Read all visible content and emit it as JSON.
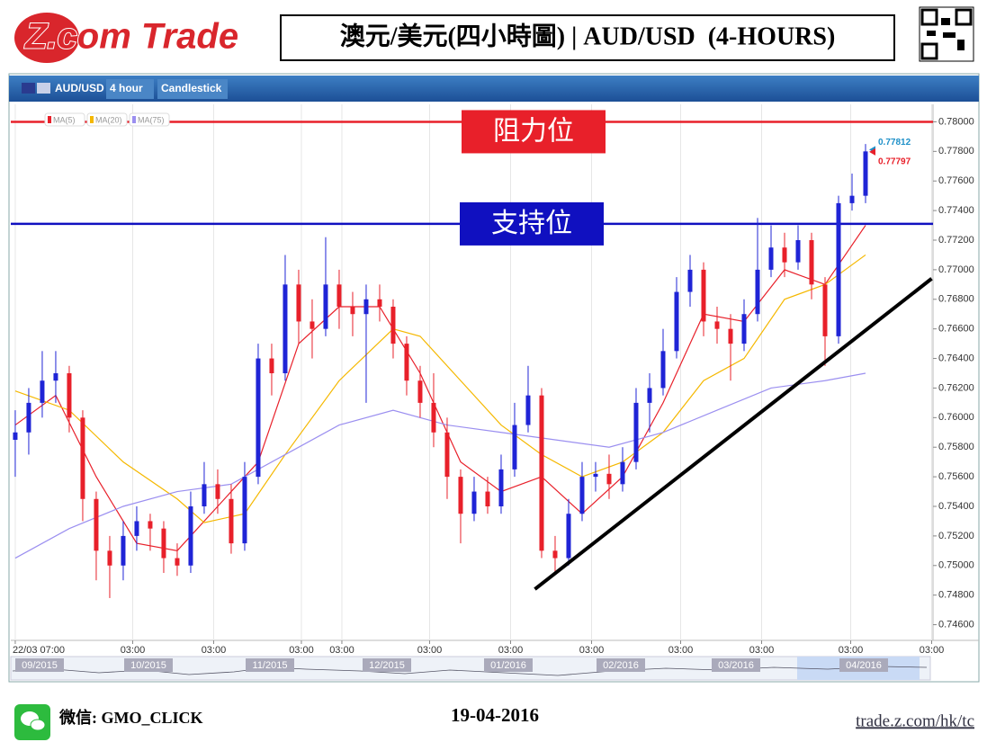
{
  "header": {
    "logo": "Z.com Trade",
    "title": "澳元/美元(四小時圖) | AUD/USD  (4-HOURS)"
  },
  "toolbar": [
    "AUD/USD",
    "4 hour",
    "Candlestick"
  ],
  "chart_data": {
    "type": "candlestick",
    "up_color": "#1f24d6",
    "down_color": "#e8202a",
    "xlim": [
      -0.33,
      68
    ],
    "ylim": [
      0.745,
      0.781
    ],
    "grid": true,
    "xticks": [
      {
        "value": 0,
        "label": "22/03 07:00"
      },
      {
        "value": 8.7,
        "label": "03:00"
      },
      {
        "value": 14.7,
        "label": "03:00"
      },
      {
        "value": 21.2,
        "label": "03:00"
      },
      {
        "value": 24.2,
        "label": "03:00"
      },
      {
        "value": 30.7,
        "label": "03:00"
      },
      {
        "value": 36.7,
        "label": "03:00"
      },
      {
        "value": 42.7,
        "label": "03:00"
      },
      {
        "value": 49.3,
        "label": "03:00"
      },
      {
        "value": 55.3,
        "label": "03:00"
      },
      {
        "value": 61.9,
        "label": "03:00"
      },
      {
        "value": 67.9,
        "label": "03:00"
      }
    ],
    "yticks": [
      {
        "value": 0.746,
        "label": "0.74600"
      },
      {
        "value": 0.748,
        "label": "0.74800"
      },
      {
        "value": 0.75,
        "label": "0.75000"
      },
      {
        "value": 0.752,
        "label": "0.75200"
      },
      {
        "value": 0.754,
        "label": "0.75400"
      },
      {
        "value": 0.756,
        "label": "0.75600"
      },
      {
        "value": 0.758,
        "label": "0.75800"
      },
      {
        "value": 0.76,
        "label": "0.76000"
      },
      {
        "value": 0.762,
        "label": "0.76200"
      },
      {
        "value": 0.764,
        "label": "0.76400"
      },
      {
        "value": 0.766,
        "label": "0.76600"
      },
      {
        "value": 0.768,
        "label": "0.76800"
      },
      {
        "value": 0.77,
        "label": "0.77000"
      },
      {
        "value": 0.772,
        "label": "0.77200"
      },
      {
        "value": 0.774,
        "label": "0.77400"
      },
      {
        "value": 0.776,
        "label": "0.77600"
      },
      {
        "value": 0.778,
        "label": "0.77800"
      },
      {
        "value": 0.78,
        "label": "0.78000"
      }
    ],
    "candles": {
      "open": [
        0.7585,
        0.759,
        0.761,
        0.7625,
        0.763,
        0.76,
        0.7545,
        0.751,
        0.75,
        0.752,
        0.753,
        0.7525,
        0.7505,
        0.75,
        0.754,
        0.7555,
        0.7545,
        0.7515,
        0.756,
        0.764,
        0.763,
        0.769,
        0.7665,
        0.766,
        0.769,
        0.7675,
        0.767,
        0.768,
        0.7675,
        0.765,
        0.7625,
        0.761,
        0.759,
        0.756,
        0.7535,
        0.755,
        0.754,
        0.7565,
        0.7595,
        0.7615,
        0.751,
        0.7505,
        0.7535,
        0.756,
        0.7562,
        0.7555,
        0.757,
        0.761,
        0.762,
        0.7645,
        0.7685,
        0.77,
        0.7665,
        0.766,
        0.765,
        0.767,
        0.77,
        0.7715,
        0.7705,
        0.772,
        0.769,
        0.7655,
        0.7745,
        0.775
      ],
      "high": [
        0.7605,
        0.762,
        0.7645,
        0.7645,
        0.7635,
        0.7605,
        0.755,
        0.752,
        0.753,
        0.754,
        0.7535,
        0.753,
        0.7515,
        0.755,
        0.757,
        0.7565,
        0.7555,
        0.757,
        0.765,
        0.765,
        0.771,
        0.77,
        0.768,
        0.7722,
        0.77,
        0.7685,
        0.769,
        0.769,
        0.768,
        0.7655,
        0.7635,
        0.763,
        0.76,
        0.7565,
        0.756,
        0.756,
        0.7575,
        0.761,
        0.7635,
        0.762,
        0.752,
        0.7545,
        0.757,
        0.757,
        0.7575,
        0.758,
        0.762,
        0.763,
        0.766,
        0.7695,
        0.771,
        0.7705,
        0.7675,
        0.767,
        0.768,
        0.7735,
        0.773,
        0.7725,
        0.773,
        0.7725,
        0.7695,
        0.775,
        0.7765,
        0.7785
      ],
      "low": [
        0.756,
        0.7575,
        0.76,
        0.761,
        0.759,
        0.753,
        0.749,
        0.7478,
        0.749,
        0.751,
        0.751,
        0.7495,
        0.7493,
        0.7495,
        0.7535,
        0.7535,
        0.7508,
        0.751,
        0.7555,
        0.7615,
        0.7625,
        0.765,
        0.764,
        0.7655,
        0.766,
        0.7655,
        0.761,
        0.7665,
        0.764,
        0.7615,
        0.76,
        0.758,
        0.7545,
        0.7515,
        0.753,
        0.7535,
        0.7535,
        0.756,
        0.759,
        0.7505,
        0.7495,
        0.75,
        0.753,
        0.755,
        0.7545,
        0.755,
        0.7565,
        0.759,
        0.7615,
        0.764,
        0.7675,
        0.7655,
        0.765,
        0.7625,
        0.7645,
        0.7665,
        0.7695,
        0.7695,
        0.77,
        0.768,
        0.7635,
        0.765,
        0.774,
        0.7745
      ],
      "close": [
        0.759,
        0.761,
        0.7625,
        0.763,
        0.76,
        0.7545,
        0.751,
        0.75,
        0.752,
        0.753,
        0.7525,
        0.7505,
        0.75,
        0.754,
        0.7555,
        0.7545,
        0.7515,
        0.756,
        0.764,
        0.763,
        0.769,
        0.7665,
        0.766,
        0.769,
        0.7675,
        0.767,
        0.768,
        0.7675,
        0.765,
        0.7625,
        0.761,
        0.759,
        0.756,
        0.7535,
        0.755,
        0.754,
        0.7565,
        0.7595,
        0.7615,
        0.751,
        0.7505,
        0.7535,
        0.756,
        0.7562,
        0.7555,
        0.757,
        0.761,
        0.762,
        0.7645,
        0.7685,
        0.77,
        0.7665,
        0.766,
        0.765,
        0.767,
        0.77,
        0.7715,
        0.7705,
        0.772,
        0.769,
        0.7655,
        0.7745,
        0.775,
        0.778
      ]
    },
    "series": [
      {
        "name": "MA(5)",
        "color": "#e8202a",
        "x": [
          0,
          3,
          6,
          9,
          12,
          15,
          18,
          21,
          24,
          27,
          30,
          33,
          36,
          39,
          42,
          45,
          48,
          51,
          54,
          57,
          60,
          63
        ],
        "values": [
          0.7595,
          0.7615,
          0.756,
          0.7515,
          0.751,
          0.754,
          0.757,
          0.765,
          0.7675,
          0.7675,
          0.763,
          0.757,
          0.755,
          0.756,
          0.7535,
          0.756,
          0.761,
          0.767,
          0.7665,
          0.77,
          0.769,
          0.773
        ]
      },
      {
        "name": "MA(20)",
        "color": "#f5b800",
        "x": [
          0,
          4,
          8,
          12,
          14,
          17,
          20,
          24,
          28,
          30,
          33,
          36,
          39,
          42,
          45,
          48,
          51,
          54,
          57,
          60,
          63
        ],
        "values": [
          0.7618,
          0.7605,
          0.757,
          0.7545,
          0.7529,
          0.7535,
          0.7575,
          0.7625,
          0.766,
          0.7655,
          0.7625,
          0.7595,
          0.7575,
          0.756,
          0.757,
          0.759,
          0.7625,
          0.764,
          0.768,
          0.769,
          0.771
        ]
      },
      {
        "name": "MA(75)",
        "color": "#9b8ff0",
        "x": [
          0,
          4,
          8,
          12,
          16,
          20,
          24,
          28,
          32,
          36,
          40,
          44,
          48,
          52,
          56,
          60,
          63
        ],
        "values": [
          0.7505,
          0.7525,
          0.754,
          0.755,
          0.7555,
          0.7575,
          0.7595,
          0.7605,
          0.7595,
          0.759,
          0.7585,
          0.758,
          0.759,
          0.7605,
          0.762,
          0.7625,
          0.763
        ]
      }
    ],
    "hlines": [
      {
        "value": 0.78,
        "label": "阻力位",
        "color": "#e8202a"
      },
      {
        "value": 0.7731,
        "label": "支持位",
        "color": "#1010c0"
      }
    ],
    "trendline": {
      "x": [
        38.5,
        67.9
      ],
      "values": [
        0.7484,
        0.7694
      ],
      "color": "#000000"
    },
    "price_labels": [
      {
        "value": 0.77812,
        "label": "0.77812",
        "color": "#1e90c8"
      },
      {
        "value": 0.77797,
        "label": "0.77797",
        "color": "#e8202a"
      }
    ],
    "navigator_labels": [
      "09/2015",
      "10/2015",
      "11/2015",
      "12/2015",
      "01/2016",
      "02/2016",
      "03/2016",
      "04/2016"
    ]
  },
  "footer": {
    "wechat": "微信: GMO_CLICK",
    "date": "19-04-2016",
    "url": "trade.z.com/hk/tc"
  }
}
